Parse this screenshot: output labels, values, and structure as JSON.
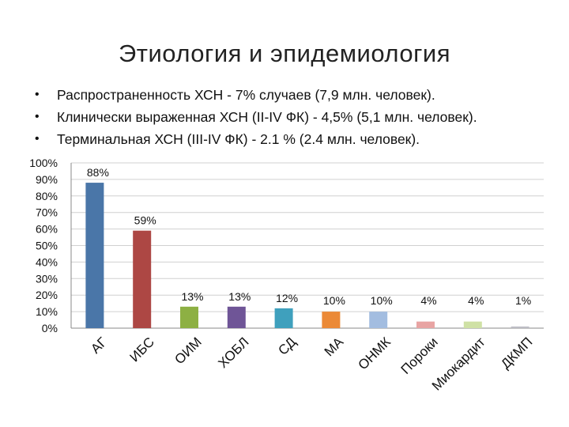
{
  "slide": {
    "title": "Этиология и эпидемиология",
    "bullets": [
      "Распространенность ХСН - 7% случаев (7,9 млн. человек).",
      "Клинически выраженная ХСН (II-IV ФК) - 4,5% (5,1 млн. человек).",
      "Терминальная ХСН (III-IV ФК) - 2.1 % (2.4 млн. человек)."
    ]
  },
  "chart_data": {
    "type": "bar",
    "title": "",
    "xlabel": "",
    "ylabel": "",
    "ylim": [
      0,
      100
    ],
    "y_ticks": [
      "0%",
      "10%",
      "20%",
      "30%",
      "40%",
      "50%",
      "60%",
      "70%",
      "80%",
      "90%",
      "100%"
    ],
    "grid": true,
    "categories": [
      "АГ",
      "ИБС",
      "ОИМ",
      "ХОБЛ",
      "СД",
      "МА",
      "ОНМК",
      "Пороки",
      "Миокардит",
      "ДКМП"
    ],
    "values": [
      88,
      59,
      13,
      13,
      12,
      10,
      10,
      4,
      4,
      1
    ],
    "data_labels": [
      "88%",
      "59%",
      "13%",
      "13%",
      "12%",
      "10%",
      "10%",
      "4%",
      "4%",
      "1%"
    ],
    "colors": [
      "#4a76a8",
      "#ad4744",
      "#8db043",
      "#6f5597",
      "#3fa0bd",
      "#eb8a37",
      "#a3bde0",
      "#e8a4a3",
      "#cfe1a5",
      "#bcbcc4"
    ]
  }
}
